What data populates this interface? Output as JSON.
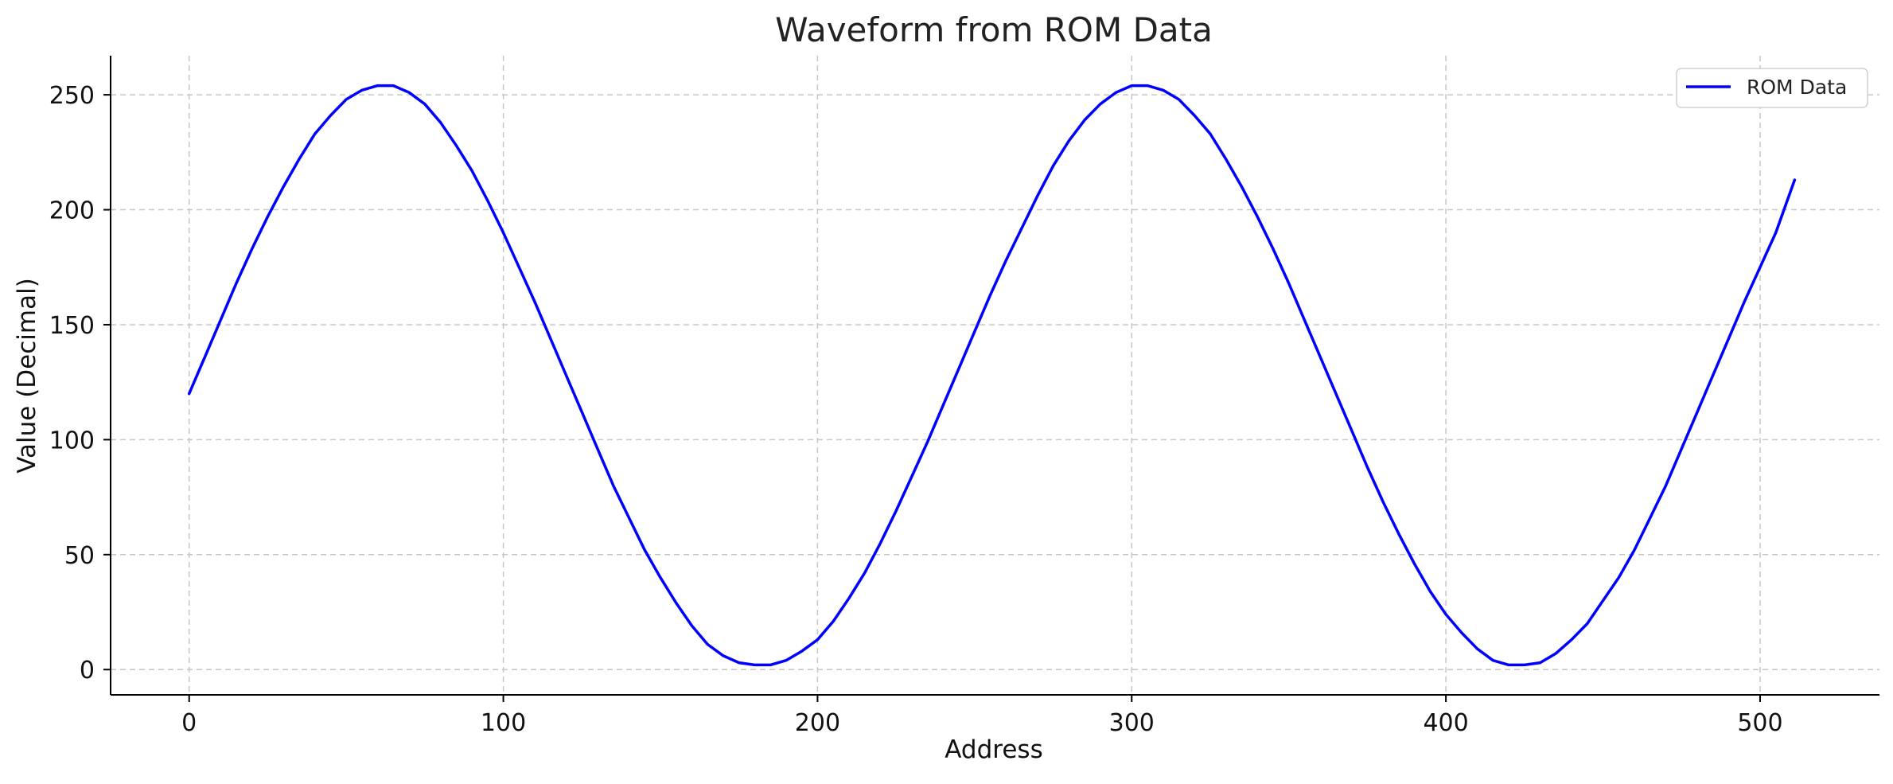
{
  "chart_data": {
    "type": "line",
    "title": "Waveform from ROM Data",
    "xlabel": "Address",
    "ylabel": "Value (Decimal)",
    "xlim": [
      -25,
      538
    ],
    "ylim": [
      -11,
      267
    ],
    "xticks": [
      0,
      100,
      200,
      300,
      400,
      500
    ],
    "yticks": [
      0,
      50,
      100,
      150,
      200,
      250
    ],
    "grid": true,
    "legend_position": "top-right",
    "series": [
      {
        "name": "ROM Data",
        "color": "#0000ff",
        "x": [
          0,
          5,
          10,
          15,
          20,
          25,
          30,
          35,
          40,
          45,
          50,
          55,
          60,
          65,
          70,
          75,
          80,
          85,
          90,
          95,
          100,
          105,
          110,
          115,
          120,
          125,
          130,
          135,
          140,
          145,
          150,
          155,
          160,
          165,
          170,
          175,
          180,
          185,
          190,
          195,
          200,
          205,
          210,
          215,
          220,
          225,
          230,
          235,
          240,
          245,
          250,
          255,
          260,
          265,
          270,
          275,
          280,
          285,
          290,
          295,
          300,
          305,
          310,
          315,
          320,
          325,
          330,
          335,
          340,
          345,
          350,
          355,
          360,
          365,
          370,
          375,
          380,
          385,
          390,
          395,
          400,
          405,
          410,
          415,
          420,
          425,
          430,
          435,
          440,
          445,
          450,
          455,
          460,
          465,
          470,
          475,
          480,
          485,
          490,
          495,
          500,
          505,
          511
        ],
        "y": [
          120,
          136,
          152,
          168,
          183,
          197,
          210,
          222,
          233,
          241,
          248,
          252,
          254,
          254,
          251,
          246,
          238,
          228,
          217,
          204,
          190,
          175,
          160,
          144,
          128,
          112,
          96,
          80,
          66,
          52,
          40,
          29,
          19,
          11,
          6,
          3,
          2,
          2,
          4,
          8,
          13,
          21,
          31,
          42,
          55,
          69,
          84,
          99,
          115,
          131,
          147,
          163,
          178,
          192,
          206,
          219,
          230,
          239,
          246,
          251,
          254,
          254,
          252,
          248,
          241,
          233,
          222,
          210,
          197,
          183,
          168,
          152,
          136,
          120,
          104,
          88,
          73,
          59,
          46,
          34,
          24,
          16,
          9,
          4,
          2,
          2,
          3,
          7,
          13,
          20,
          30,
          40,
          52,
          66,
          80,
          96,
          112,
          128,
          144,
          160,
          175,
          190,
          213
        ]
      }
    ]
  }
}
